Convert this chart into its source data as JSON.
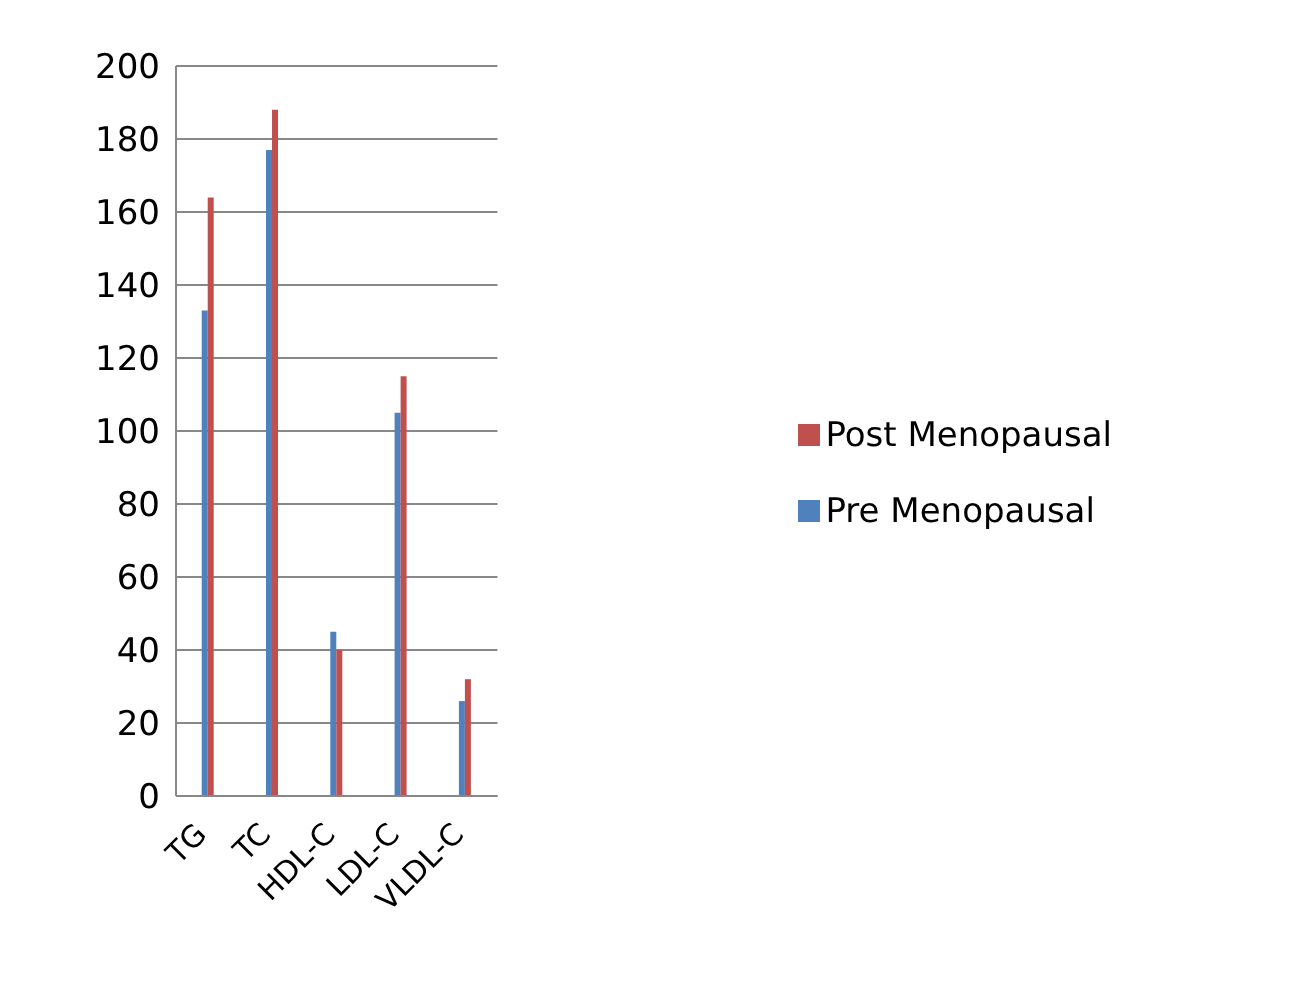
{
  "chart_data": {
    "type": "bar",
    "categories": [
      "TG",
      "TC",
      "HDL-C",
      "LDL-C",
      "VLDL-C"
    ],
    "series": [
      {
        "name": "Pre Menopausal",
        "color": "#4f81bd",
        "values": [
          133,
          177,
          45,
          105,
          26
        ]
      },
      {
        "name": "Post Menopausal",
        "color": "#c0504d",
        "values": [
          164,
          188,
          40,
          115,
          32
        ]
      }
    ],
    "ylim": [
      0,
      200
    ],
    "yticks": [
      0,
      20,
      40,
      60,
      80,
      100,
      120,
      140,
      160,
      180,
      200
    ],
    "grid": "y",
    "legend": "right"
  }
}
